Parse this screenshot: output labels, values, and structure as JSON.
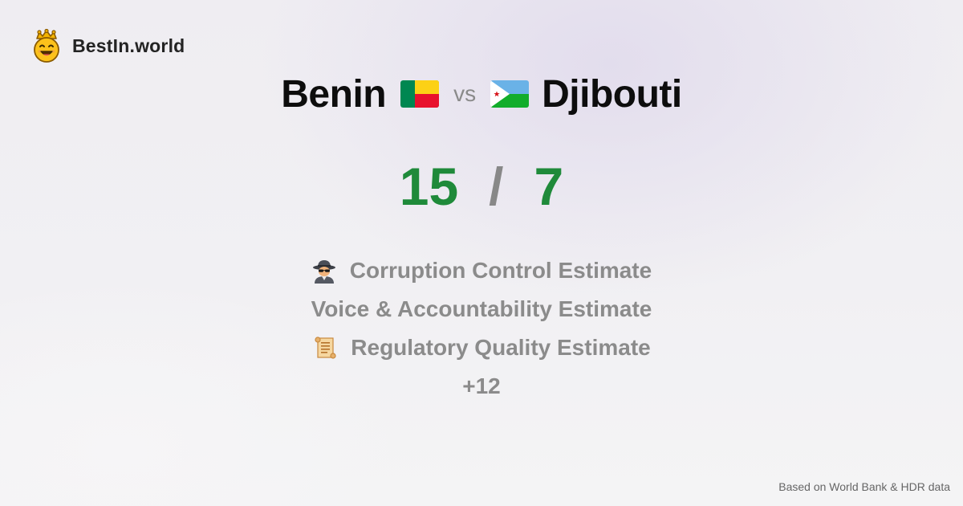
{
  "brand": {
    "name": "BestIn.world",
    "logo_icon": "crowned-smiley-icon"
  },
  "comparison": {
    "left_country": "Benin",
    "left_flag_icon": "benin-flag-icon",
    "vs_label": "vs",
    "right_country": "Djibouti",
    "right_flag_icon": "djibouti-flag-icon"
  },
  "score": {
    "left": "15",
    "separator": "/",
    "right": "7"
  },
  "metrics": [
    {
      "icon": "spy-icon",
      "label": "Corruption Control Estimate"
    },
    {
      "icon": "",
      "label": "Voice & Accountability Estimate"
    },
    {
      "icon": "scroll-icon",
      "label": "Regulatory Quality Estimate"
    }
  ],
  "more_label": "+12",
  "footer": {
    "source_text": "Based on World Bank & HDR data"
  },
  "colors": {
    "score_green": "#1f8a3a",
    "muted_gray": "#8b8b8b",
    "benin_green": "#008751",
    "benin_yellow": "#fcd116",
    "benin_red": "#e8112d",
    "djibouti_blue": "#6ab2e7",
    "djibouti_green": "#12ad2b"
  }
}
